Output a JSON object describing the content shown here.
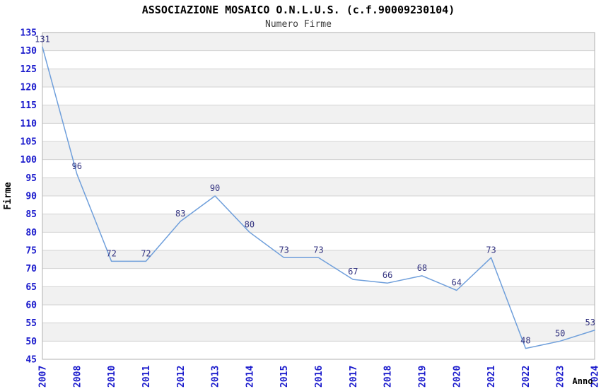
{
  "chart_data": {
    "type": "line",
    "title": "ASSOCIAZIONE MOSAICO O.N.L.U.S. (c.f.90009230104)",
    "subtitle": "Numero Firme",
    "xlabel": "Anno",
    "ylabel": "Firme",
    "categories": [
      "2007",
      "2008",
      "2010",
      "2011",
      "2012",
      "2013",
      "2014",
      "2015",
      "2016",
      "2017",
      "2018",
      "2019",
      "2020",
      "2021",
      "2022",
      "2023",
      "2024"
    ],
    "values": [
      131,
      96,
      72,
      72,
      83,
      90,
      80,
      73,
      73,
      67,
      66,
      68,
      64,
      73,
      48,
      50,
      53
    ],
    "ylim": [
      45,
      135
    ],
    "ytick_step": 5,
    "grid": true,
    "banded_background": true,
    "legend": "none",
    "colors": {
      "line": "#6f9fdb",
      "tick_label": "#1a1acc",
      "data_label": "#333380",
      "band": "#f1f1f1",
      "gridline": "#d2d2d2",
      "plot_border": "#b0b0b0",
      "title": "#000000",
      "subtitle": "#3c3c3c",
      "axis_title": "#000000",
      "background": "#ffffff"
    }
  }
}
